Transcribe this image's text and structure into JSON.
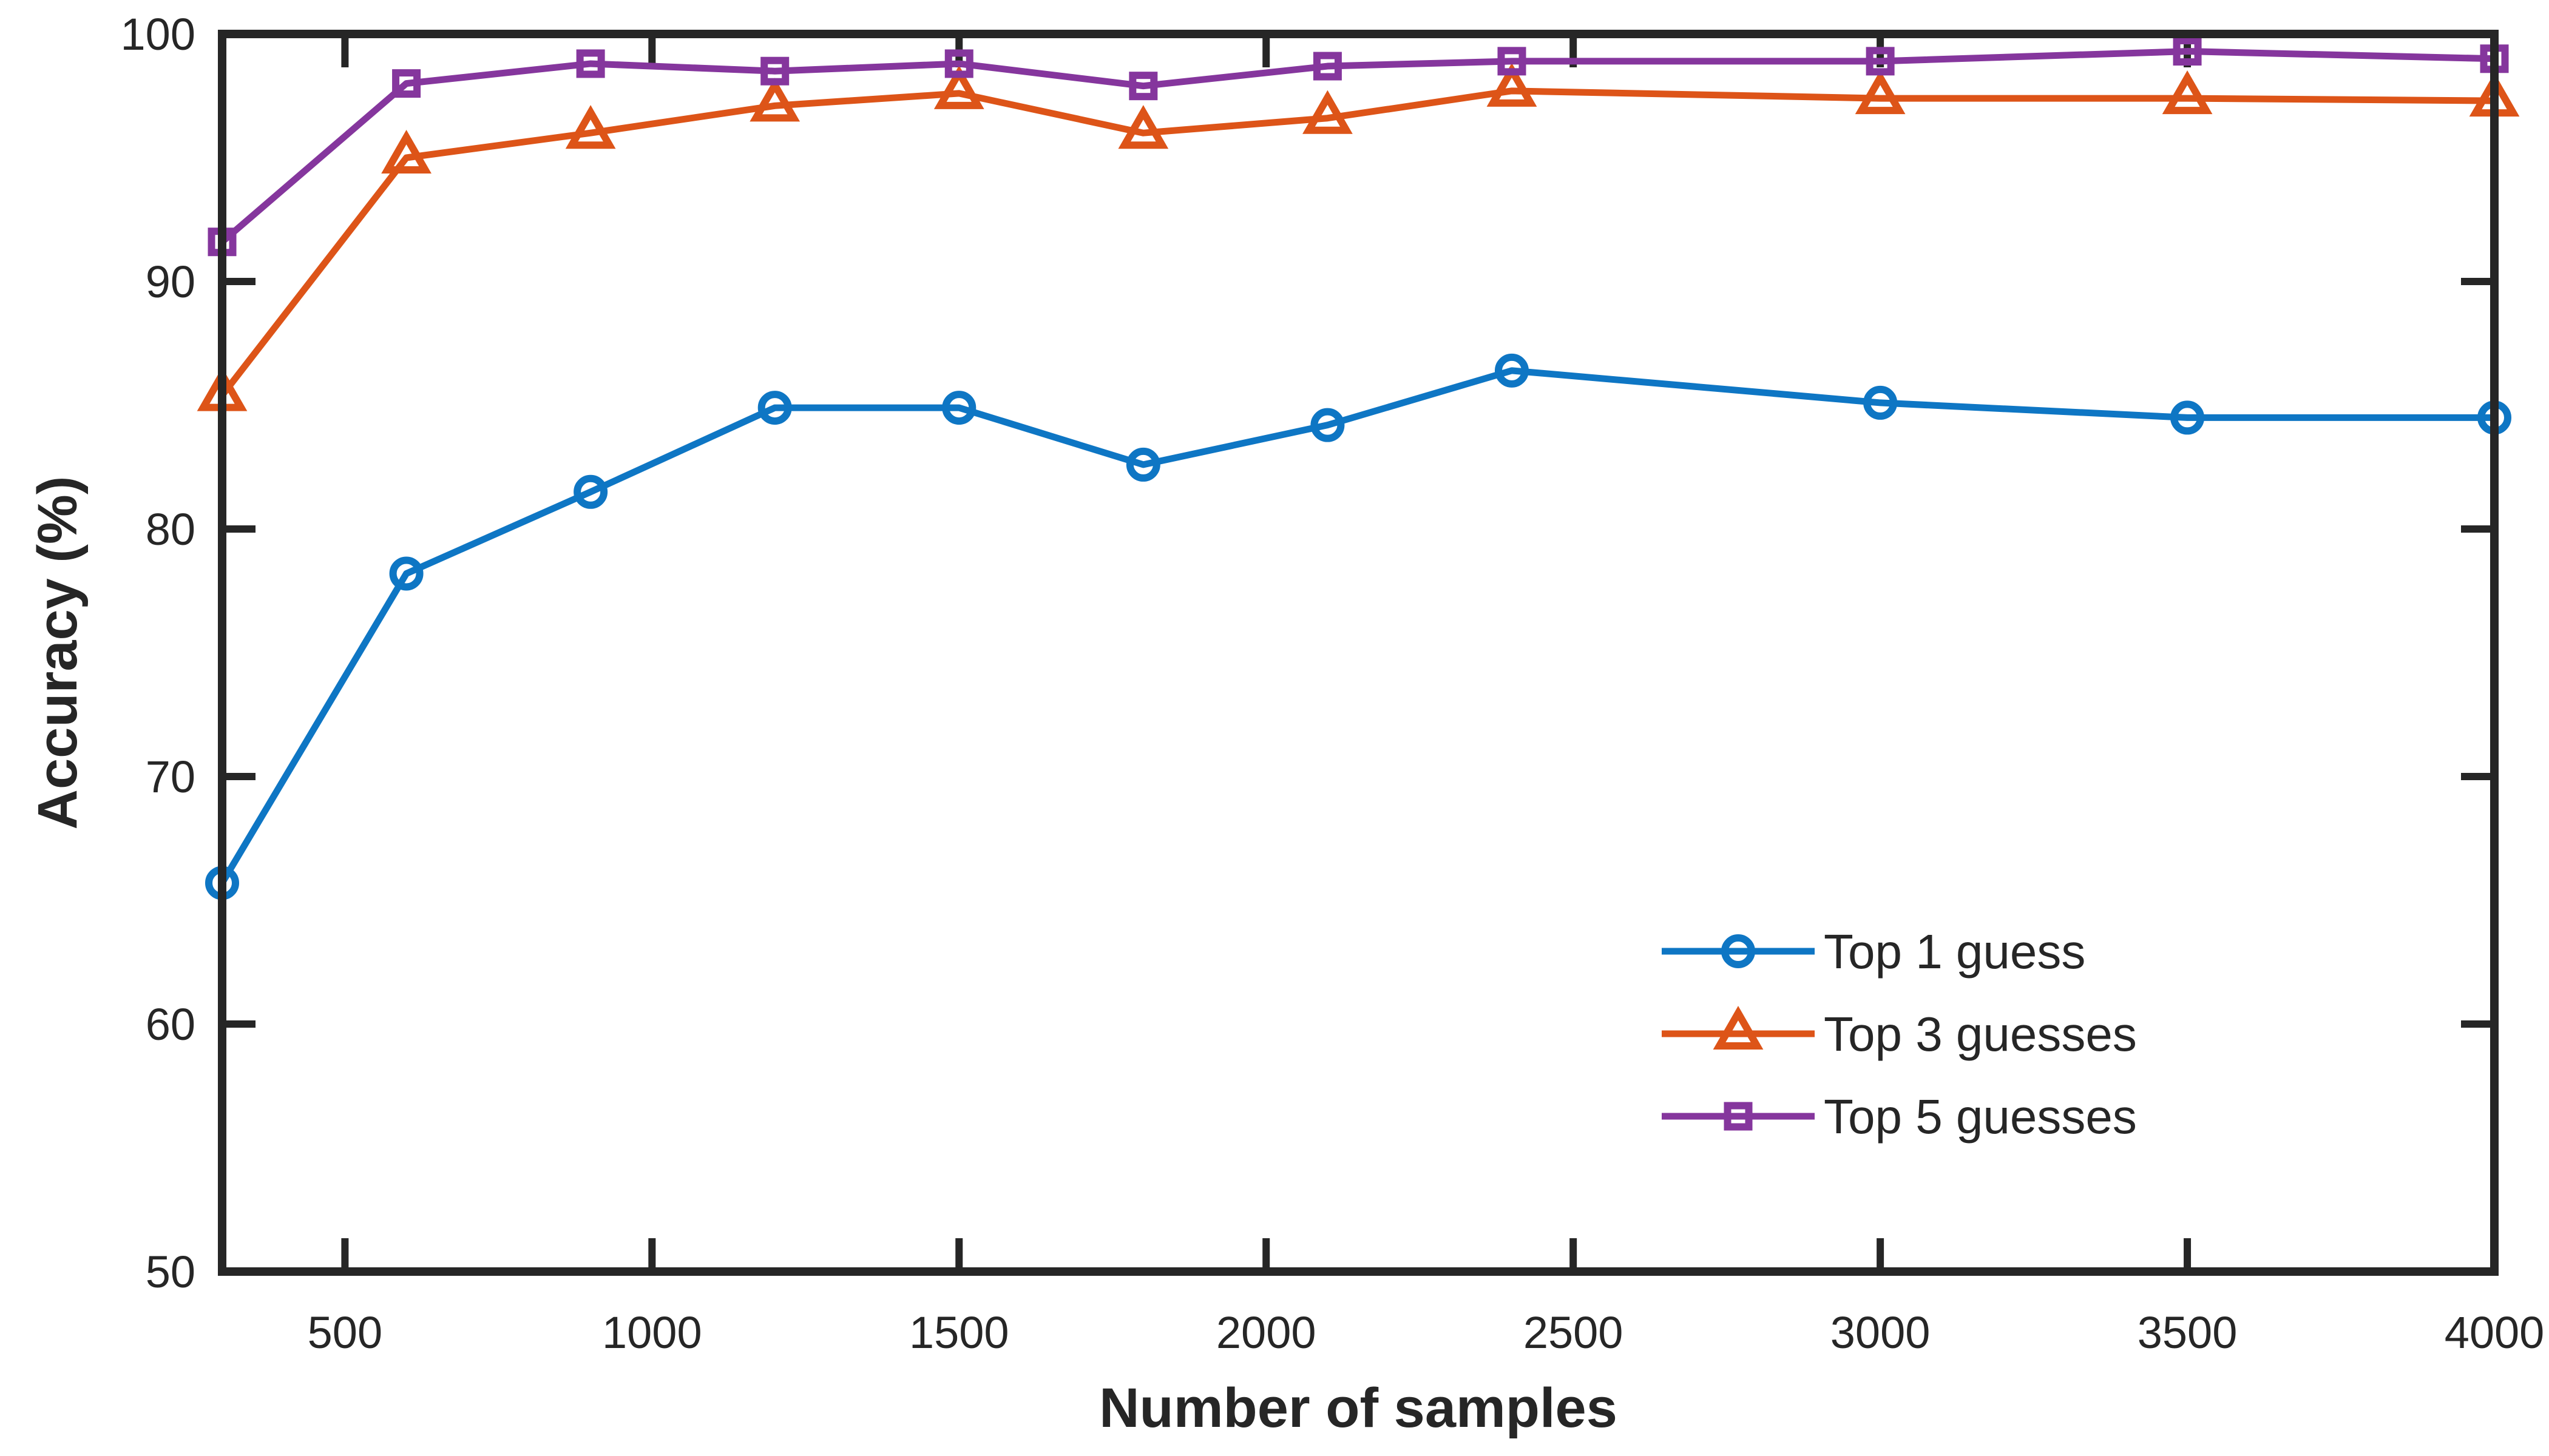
{
  "chart_data": {
    "type": "line",
    "title": "",
    "xlabel": "Number of samples",
    "ylabel": "Accuracy (%)",
    "xlim": [
      300,
      4000
    ],
    "ylim": [
      50,
      100
    ],
    "x_ticks": [
      500,
      1000,
      1500,
      2000,
      2500,
      3000,
      3500,
      4000
    ],
    "x_tick_labels": [
      "500",
      "1000",
      "1500",
      "2000",
      "2500",
      "3000",
      "3500",
      "4000"
    ],
    "y_ticks": [
      50,
      60,
      70,
      80,
      90,
      100
    ],
    "y_tick_labels": [
      "50",
      "60",
      "70",
      "80",
      "90",
      "100"
    ],
    "grid": false,
    "box": true,
    "tick_direction": "in",
    "axis_color": "#262626",
    "background": "#ffffff",
    "legend": {
      "position": "inside-lower-right",
      "border": "none",
      "entries": [
        "Top 1 guess",
        "Top 3 guesses",
        "Top 5 guesses"
      ]
    },
    "x": [
      300,
      600,
      900,
      1200,
      1500,
      1800,
      2100,
      2400,
      3000,
      3500,
      4000
    ],
    "series": [
      {
        "name": "Top 1 guess",
        "marker": "circle",
        "color": "#0e76c4",
        "values": [
          65.7,
          78.2,
          81.5,
          84.9,
          84.9,
          82.6,
          84.2,
          86.4,
          85.1,
          84.5,
          84.5
        ]
      },
      {
        "name": "Top 3 guesses",
        "marker": "triangle-up",
        "color": "#dd5418",
        "values": [
          85.4,
          95.0,
          96.0,
          97.1,
          97.6,
          96.0,
          96.6,
          97.7,
          97.4,
          97.4,
          97.3
        ]
      },
      {
        "name": "Top 5 guesses",
        "marker": "square",
        "color": "#85369d",
        "values": [
          91.6,
          98.0,
          98.8,
          98.5,
          98.8,
          97.9,
          98.7,
          98.9,
          98.9,
          99.3,
          99.0
        ]
      }
    ]
  }
}
